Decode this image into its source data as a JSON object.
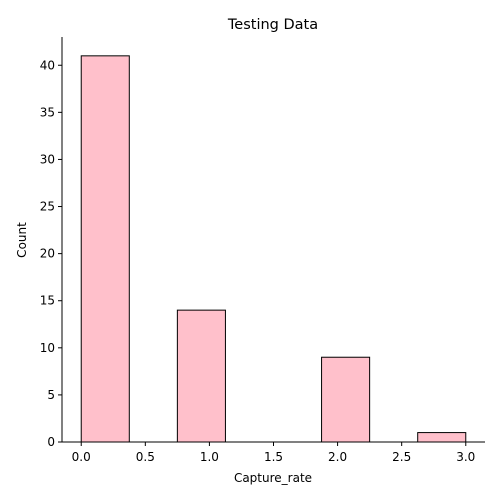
{
  "chart_data": {
    "type": "bar",
    "title": "Testing Data",
    "xlabel": "Capture_rate",
    "ylabel": "Count",
    "bins": [
      {
        "start": 0.0,
        "end": 0.375,
        "count": 41
      },
      {
        "start": 0.375,
        "end": 0.75,
        "count": 0
      },
      {
        "start": 0.75,
        "end": 1.125,
        "count": 14
      },
      {
        "start": 1.125,
        "end": 1.5,
        "count": 0
      },
      {
        "start": 1.5,
        "end": 1.875,
        "count": 0
      },
      {
        "start": 1.875,
        "end": 2.25,
        "count": 9
      },
      {
        "start": 2.25,
        "end": 2.625,
        "count": 0
      },
      {
        "start": 2.625,
        "end": 3.0,
        "count": 1
      }
    ],
    "xlim": [
      -0.15,
      3.15
    ],
    "ylim": [
      0,
      43
    ],
    "xticks": [
      "0.0",
      "0.5",
      "1.0",
      "1.5",
      "2.0",
      "2.5",
      "3.0"
    ],
    "yticks": [
      "0",
      "5",
      "10",
      "15",
      "20",
      "25",
      "30",
      "35",
      "40"
    ],
    "bar_fill": "#ffc0cb",
    "bar_edge": "#000000",
    "grid": false,
    "spines": [
      "left",
      "bottom"
    ]
  }
}
